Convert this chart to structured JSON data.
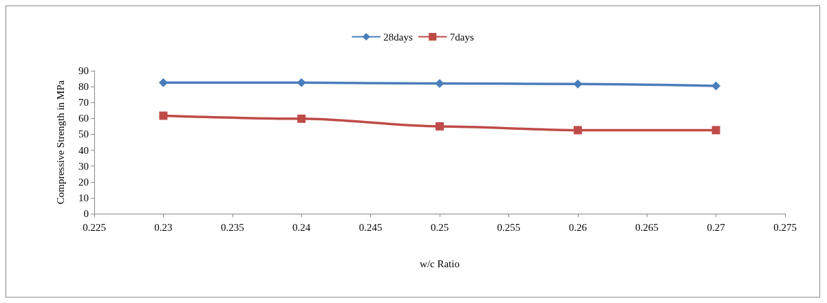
{
  "chart_data": {
    "type": "line",
    "xlabel": "w/c Ratio",
    "ylabel": "Compressive Strength in MPa",
    "x": [
      0.23,
      0.24,
      0.25,
      0.26,
      0.27
    ],
    "series": [
      {
        "name": "28days",
        "color": "#4a7ebb",
        "marker": "diamond",
        "values": [
          82.5,
          82.5,
          82,
          81.7,
          80.5
        ]
      },
      {
        "name": "7days",
        "color": "#be4b48",
        "marker": "square",
        "values": [
          61.7,
          59.8,
          55,
          52.6,
          52.6
        ]
      }
    ],
    "xlim": [
      0.225,
      0.275
    ],
    "xticks": [
      0.225,
      0.23,
      0.235,
      0.24,
      0.245,
      0.25,
      0.255,
      0.26,
      0.265,
      0.27,
      0.275
    ],
    "ylim": [
      0,
      90
    ],
    "yticks": [
      0,
      10,
      20,
      30,
      40,
      50,
      60,
      70,
      80,
      90
    ],
    "grid": false,
    "legend": "top",
    "line_style": "solid"
  }
}
